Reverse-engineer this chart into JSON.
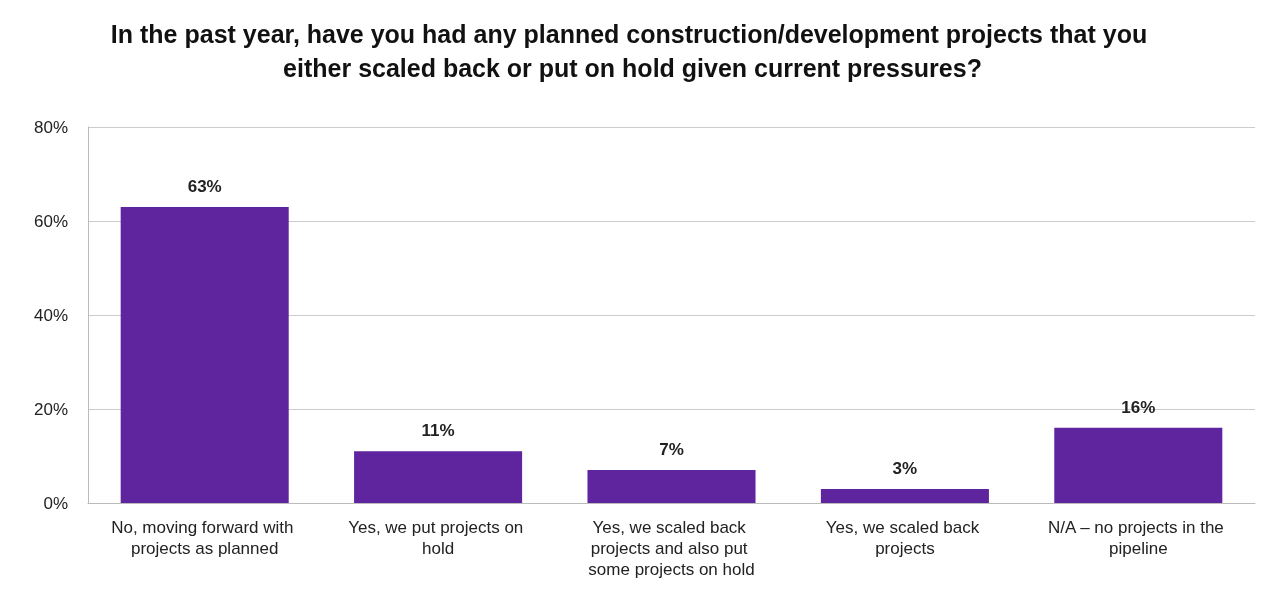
{
  "chart_data": {
    "type": "bar",
    "title": "In the past year, have you had any planned construction/development projects that you either scaled back or put on hold given current pressures?",
    "categories": [
      "No, moving forward with projects as planned",
      "Yes, we put projects on hold",
      "Yes, we scaled back projects and also put some projects on hold",
      "Yes, we scaled back projects",
      "N/A – no projects in the pipeline"
    ],
    "values": [
      63,
      11,
      7,
      3,
      16
    ],
    "value_labels": [
      "63%",
      "11%",
      "7%",
      "3%",
      "16%"
    ],
    "color": "#5f259f",
    "ylim": [
      0,
      80
    ],
    "yticks": [
      {
        "value": 0,
        "label": "0%"
      },
      {
        "value": 20,
        "label": "20%"
      },
      {
        "value": 40,
        "label": "40%"
      },
      {
        "value": 60,
        "label": "60%"
      },
      {
        "value": 80,
        "label": "80%"
      }
    ],
    "grid": "y"
  }
}
